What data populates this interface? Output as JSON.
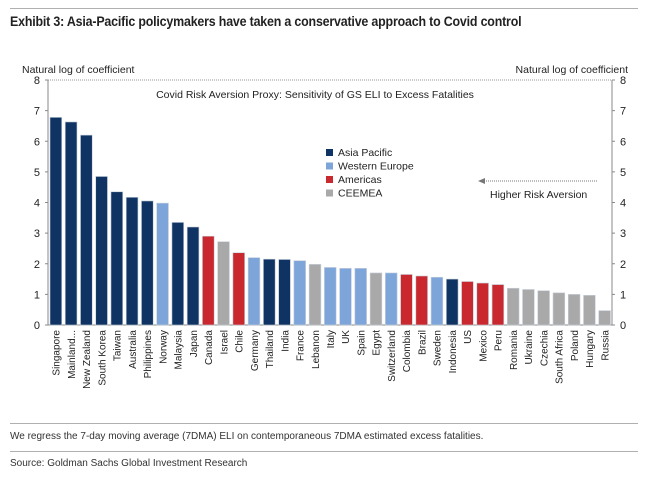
{
  "title": "Exhibit 3: Asia-Pacific policymakers have taken a conservative approach to Covid control",
  "footnote": "We regress the 7-day moving average (7DMA) ELI on contemporaneous 7DMA estimated excess fatalities.",
  "source": "Source: Goldman Sachs Global Investment Research",
  "chart_data": {
    "type": "bar",
    "title": "Covid Risk Aversion Proxy: Sensitivity of GS ELI to Excess Fatalities",
    "ylabel_left": "Natural log of coefficient",
    "ylabel_right": "Natural log of coefficient",
    "ylim": [
      0,
      8
    ],
    "yticks": [
      "0",
      "1",
      "2",
      "3",
      "4",
      "5",
      "6",
      "7",
      "8"
    ],
    "annotation": "Higher Risk Aversion",
    "legend_position": "center",
    "legend": [
      {
        "name": "Asia Pacific",
        "color": "#0f3463"
      },
      {
        "name": "Western Europe",
        "color": "#7da5d9"
      },
      {
        "name": "Americas",
        "color": "#c9282e"
      },
      {
        "name": "CEEMEA",
        "color": "#a9a9a9"
      }
    ],
    "categories": [
      "Singapore",
      "Mainland...",
      "New Zealand",
      "South Korea",
      "Taiwan",
      "Australia",
      "Philippines",
      "Norway",
      "Malaysia",
      "Japan",
      "Canada",
      "Israel",
      "Chile",
      "Germany",
      "Thailand",
      "India",
      "France",
      "Lebanon",
      "Italy",
      "UK",
      "Spain",
      "Egypt",
      "Switzerland",
      "Colombia",
      "Brazil",
      "Sweden",
      "Indonesia",
      "US",
      "Mexico",
      "Peru",
      "Romania",
      "Ukraine",
      "Czechia",
      "South Africa",
      "Poland",
      "Hungary",
      "Russia"
    ],
    "values": [
      6.78,
      6.63,
      6.2,
      4.85,
      4.35,
      4.17,
      4.05,
      3.98,
      3.35,
      3.2,
      2.9,
      2.72,
      2.36,
      2.2,
      2.15,
      2.14,
      2.1,
      1.98,
      1.88,
      1.85,
      1.85,
      1.7,
      1.7,
      1.65,
      1.6,
      1.56,
      1.5,
      1.42,
      1.37,
      1.32,
      1.2,
      1.16,
      1.12,
      1.05,
      1.0,
      0.97,
      0.47
    ],
    "regions": [
      0,
      0,
      0,
      0,
      0,
      0,
      0,
      1,
      0,
      0,
      2,
      3,
      2,
      1,
      0,
      0,
      1,
      3,
      1,
      1,
      1,
      3,
      1,
      2,
      2,
      1,
      0,
      2,
      2,
      2,
      3,
      3,
      3,
      3,
      3,
      3,
      3
    ]
  }
}
